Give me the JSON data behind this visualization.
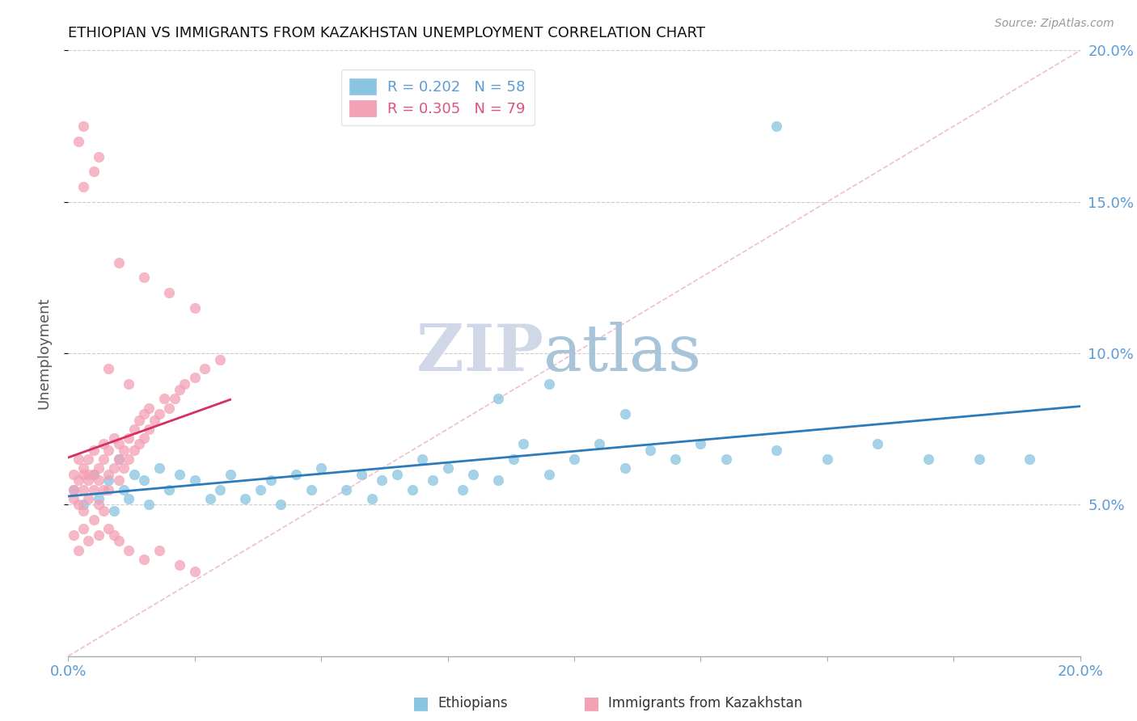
{
  "title": "ETHIOPIAN VS IMMIGRANTS FROM KAZAKHSTAN UNEMPLOYMENT CORRELATION CHART",
  "source": "Source: ZipAtlas.com",
  "ylabel": "Unemployment",
  "xlim": [
    0.0,
    0.2
  ],
  "ylim": [
    0.0,
    0.2
  ],
  "ytick_labels_right": [
    "5.0%",
    "10.0%",
    "15.0%",
    "20.0%"
  ],
  "grid_color": "#cccccc",
  "blue_color": "#89c4e1",
  "pink_color": "#f4a0b5",
  "blue_line_color": "#2b7bba",
  "pink_line_color": "#d63060",
  "diag_line_color": "#e8b0c0",
  "R_blue": 0.202,
  "N_blue": 58,
  "R_pink": 0.305,
  "N_pink": 79,
  "watermark_zip": "ZIP",
  "watermark_atlas": "atlas",
  "watermark_color_zip": "#d0d8e8",
  "watermark_color_atlas": "#a8c4d8",
  "blue_scatter_x": [
    0.001,
    0.003,
    0.005,
    0.006,
    0.008,
    0.009,
    0.01,
    0.011,
    0.012,
    0.013,
    0.015,
    0.016,
    0.018,
    0.02,
    0.022,
    0.025,
    0.028,
    0.03,
    0.032,
    0.035,
    0.038,
    0.04,
    0.042,
    0.045,
    0.048,
    0.05,
    0.055,
    0.058,
    0.06,
    0.062,
    0.065,
    0.068,
    0.07,
    0.072,
    0.075,
    0.078,
    0.08,
    0.085,
    0.088,
    0.09,
    0.095,
    0.1,
    0.105,
    0.11,
    0.115,
    0.12,
    0.125,
    0.13,
    0.14,
    0.15,
    0.16,
    0.17,
    0.18,
    0.19,
    0.085,
    0.095,
    0.11,
    0.14
  ],
  "blue_scatter_y": [
    0.055,
    0.05,
    0.06,
    0.052,
    0.058,
    0.048,
    0.065,
    0.055,
    0.052,
    0.06,
    0.058,
    0.05,
    0.062,
    0.055,
    0.06,
    0.058,
    0.052,
    0.055,
    0.06,
    0.052,
    0.055,
    0.058,
    0.05,
    0.06,
    0.055,
    0.062,
    0.055,
    0.06,
    0.052,
    0.058,
    0.06,
    0.055,
    0.065,
    0.058,
    0.062,
    0.055,
    0.06,
    0.058,
    0.065,
    0.07,
    0.06,
    0.065,
    0.07,
    0.062,
    0.068,
    0.065,
    0.07,
    0.065,
    0.068,
    0.065,
    0.07,
    0.065,
    0.065,
    0.065,
    0.085,
    0.09,
    0.08,
    0.175
  ],
  "pink_scatter_x": [
    0.001,
    0.001,
    0.001,
    0.002,
    0.002,
    0.002,
    0.003,
    0.003,
    0.003,
    0.003,
    0.004,
    0.004,
    0.004,
    0.005,
    0.005,
    0.005,
    0.006,
    0.006,
    0.006,
    0.007,
    0.007,
    0.007,
    0.008,
    0.008,
    0.008,
    0.009,
    0.009,
    0.01,
    0.01,
    0.01,
    0.011,
    0.011,
    0.012,
    0.012,
    0.013,
    0.013,
    0.014,
    0.014,
    0.015,
    0.015,
    0.016,
    0.016,
    0.017,
    0.018,
    0.019,
    0.02,
    0.021,
    0.022,
    0.023,
    0.025,
    0.027,
    0.03,
    0.001,
    0.002,
    0.003,
    0.004,
    0.005,
    0.006,
    0.007,
    0.008,
    0.009,
    0.01,
    0.012,
    0.015,
    0.018,
    0.022,
    0.025,
    0.003,
    0.006,
    0.01,
    0.015,
    0.02,
    0.025,
    0.003,
    0.005,
    0.008,
    0.012,
    0.002,
    0.004
  ],
  "pink_scatter_y": [
    0.055,
    0.052,
    0.06,
    0.058,
    0.05,
    0.065,
    0.055,
    0.062,
    0.048,
    0.06,
    0.058,
    0.065,
    0.052,
    0.06,
    0.055,
    0.068,
    0.058,
    0.062,
    0.05,
    0.065,
    0.055,
    0.07,
    0.06,
    0.068,
    0.055,
    0.072,
    0.062,
    0.065,
    0.058,
    0.07,
    0.062,
    0.068,
    0.065,
    0.072,
    0.068,
    0.075,
    0.07,
    0.078,
    0.072,
    0.08,
    0.075,
    0.082,
    0.078,
    0.08,
    0.085,
    0.082,
    0.085,
    0.088,
    0.09,
    0.092,
    0.095,
    0.098,
    0.04,
    0.035,
    0.042,
    0.038,
    0.045,
    0.04,
    0.048,
    0.042,
    0.04,
    0.038,
    0.035,
    0.032,
    0.035,
    0.03,
    0.028,
    0.155,
    0.165,
    0.13,
    0.125,
    0.12,
    0.115,
    0.175,
    0.16,
    0.095,
    0.09,
    0.17,
    0.06
  ]
}
